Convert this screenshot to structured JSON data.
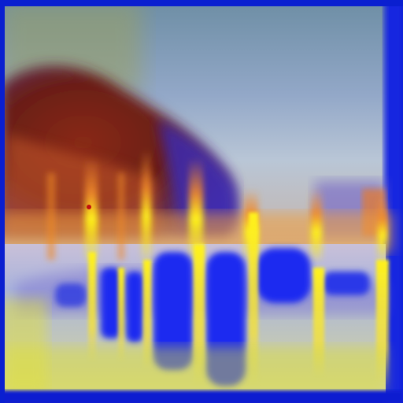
{
  "image": {
    "kind": "abstract-painting",
    "subject": "night-lights-reflecting-on-water",
    "palette": {
      "border": "#0a1fd0",
      "sky_top": "#7e8fb4",
      "sky_mid": "#93a8c8",
      "haze": "#b9c6d6",
      "mountain_dark": "#6a1e12",
      "mountain_mid": "#b8452a",
      "glow_orange": "#f08a2a",
      "glow_yellow": "#fff21a",
      "water_blue": "#1c2cf0",
      "water_light": "#b8c4e0",
      "violet": "#6a58d8",
      "foreground_yellow": "#d8dc3a"
    },
    "caption": ""
  }
}
